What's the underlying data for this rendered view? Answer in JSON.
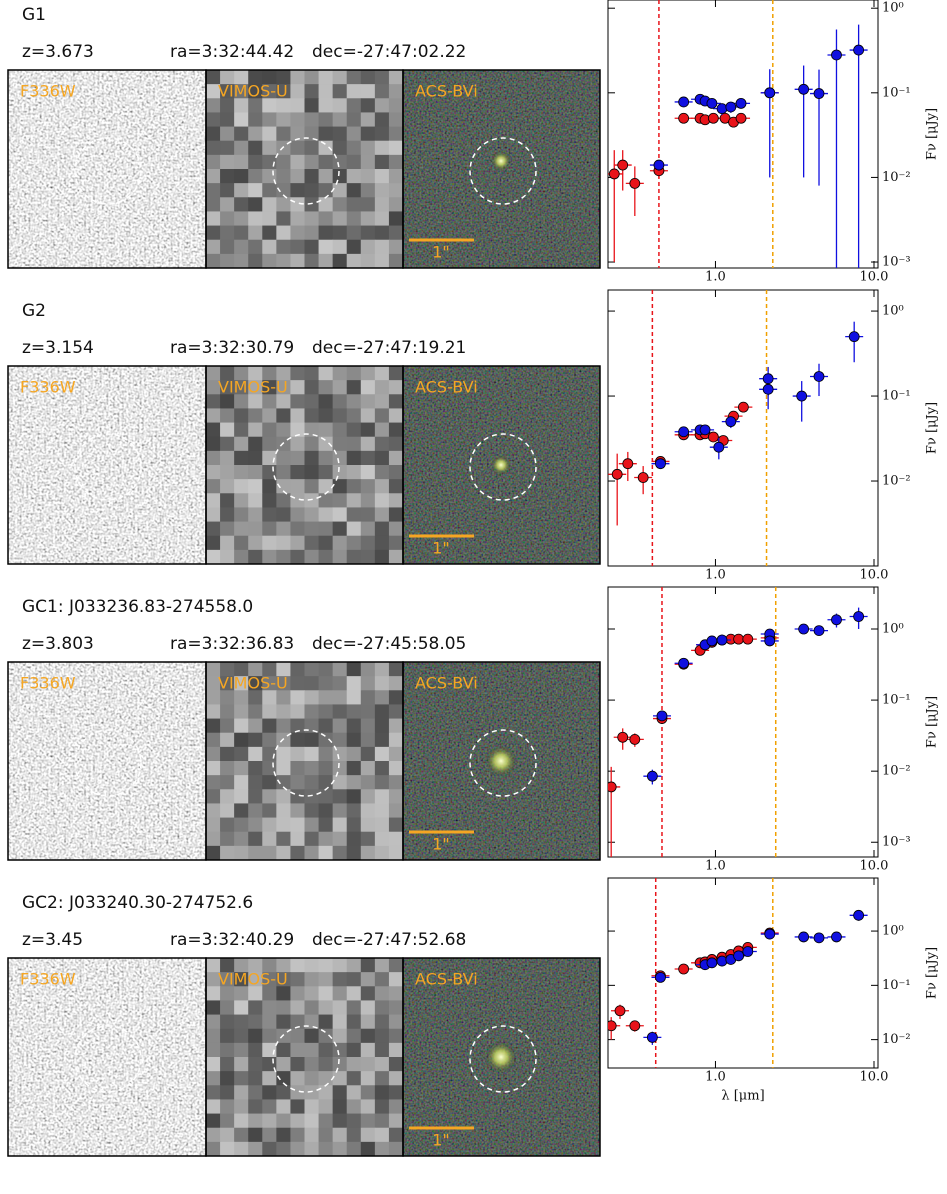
{
  "chart_data": [
    {
      "type": "scatter",
      "title": "G1",
      "annotations": [
        "z=3.673",
        "ra=3:32:44.42",
        "dec=-27:47:02.22"
      ],
      "image_labels": [
        "F336W",
        "VIMOS-U",
        "ACS-BVi"
      ],
      "scale_label": "1\"",
      "x_scale": "log",
      "y_scale": "log",
      "xlim": [
        0.21,
        10.6
      ],
      "ylim": [
        0.00085,
        1.25
      ],
      "xticks": [
        {
          "value": 1,
          "label": "1.0"
        },
        {
          "value": 10,
          "label": "10.0"
        }
      ],
      "yticks": [
        {
          "value": 1,
          "label": "10⁰"
        },
        {
          "value": 0.1,
          "label": "10⁻¹"
        },
        {
          "value": 0.01,
          "label": "10⁻²"
        },
        {
          "value": 0.001,
          "label": "10⁻³"
        }
      ],
      "ylabel": "Fν [μJy]",
      "vlines": [
        {
          "x": 0.44,
          "color": "#e8141a"
        },
        {
          "x": 2.3,
          "color": "#f0a000"
        }
      ],
      "series": [
        {
          "name": "red",
          "color": "#e8141a",
          "x": [
            0.23,
            0.26,
            0.31,
            0.44,
            0.63,
            0.8,
            0.86,
            0.97,
            1.15,
            1.3,
            1.45,
            2.2
          ],
          "values": [
            0.011,
            0.014,
            0.0085,
            0.012,
            0.05,
            0.05,
            0.048,
            0.05,
            0.05,
            0.045,
            0.05,
            0.1
          ],
          "errors": [
            0.01,
            0.007,
            0.005,
            0.002,
            0.003,
            0.003,
            0.003,
            0.003,
            0.003,
            0.003,
            0.003,
            0.01
          ]
        },
        {
          "name": "blue",
          "color": "#1010e0",
          "x": [
            0.44,
            0.63,
            0.8,
            0.86,
            0.95,
            1.1,
            1.25,
            1.45,
            2.2,
            3.6,
            4.5,
            5.8,
            8.0
          ],
          "values": [
            0.014,
            0.078,
            0.084,
            0.08,
            0.075,
            0.065,
            0.068,
            0.075,
            0.1,
            0.11,
            0.098,
            0.28,
            0.32
          ],
          "errors": [
            0.002,
            0.01,
            0.01,
            0.01,
            0.01,
            0.01,
            0.01,
            0.01,
            0.09,
            0.1,
            0.09,
            0.28,
            0.32
          ]
        }
      ]
    },
    {
      "type": "scatter",
      "title": "G2",
      "annotations": [
        "z=3.154",
        "ra=3:32:30.79",
        "dec=-27:47:19.21"
      ],
      "image_labels": [
        "F336W",
        "VIMOS-U",
        "ACS-BVi"
      ],
      "scale_label": "1\"",
      "x_scale": "log",
      "y_scale": "log",
      "xlim": [
        0.21,
        10.6
      ],
      "ylim": [
        0.001,
        1.77
      ],
      "xticks": [
        {
          "value": 1,
          "label": "1.0"
        },
        {
          "value": 10,
          "label": "10.0"
        }
      ],
      "yticks": [
        {
          "value": 1,
          "label": "10⁰"
        },
        {
          "value": 0.1,
          "label": "10⁻¹"
        },
        {
          "value": 0.01,
          "label": "10⁻²"
        }
      ],
      "ylabel": "Fν [μJy]",
      "vlines": [
        {
          "x": 0.4,
          "color": "#e8141a"
        },
        {
          "x": 2.1,
          "color": "#f0a000"
        }
      ],
      "series": [
        {
          "name": "red",
          "color": "#e8141a",
          "x": [
            0.24,
            0.28,
            0.35,
            0.45,
            0.63,
            0.8,
            0.86,
            0.97,
            1.12,
            1.3,
            1.5
          ],
          "values": [
            0.012,
            0.016,
            0.011,
            0.017,
            0.035,
            0.035,
            0.036,
            0.033,
            0.03,
            0.058,
            0.074
          ],
          "errors": [
            0.009,
            0.006,
            0.004,
            0.002,
            0.003,
            0.003,
            0.003,
            0.003,
            0.003,
            0.005,
            0.006
          ]
        },
        {
          "name": "blue",
          "color": "#1010e0",
          "x": [
            0.45,
            0.63,
            0.8,
            0.86,
            1.05,
            1.25,
            2.15,
            2.15,
            3.5,
            4.5,
            7.5
          ],
          "values": [
            0.016,
            0.038,
            0.04,
            0.04,
            0.025,
            0.05,
            0.16,
            0.12,
            0.1,
            0.17,
            0.5
          ],
          "errors": [
            0.002,
            0.004,
            0.004,
            0.004,
            0.007,
            0.008,
            0.06,
            0.05,
            0.05,
            0.07,
            0.25
          ]
        }
      ]
    },
    {
      "type": "scatter",
      "title": "GC1:  J033236.83-274558.0",
      "annotations": [
        "z=3.803",
        "ra=3:32:36.83",
        "dec=-27:45:58.05"
      ],
      "image_labels": [
        "F336W",
        "VIMOS-U",
        "ACS-BVi"
      ],
      "scale_label": "1\"",
      "x_scale": "log",
      "y_scale": "log",
      "xlim": [
        0.21,
        10.6
      ],
      "ylim": [
        0.00062,
        3.9
      ],
      "xticks": [
        {
          "value": 1,
          "label": "1.0"
        },
        {
          "value": 10,
          "label": "10.0"
        }
      ],
      "yticks": [
        {
          "value": 1,
          "label": "10⁰"
        },
        {
          "value": 0.1,
          "label": "10⁻¹"
        },
        {
          "value": 0.01,
          "label": "10⁻²"
        },
        {
          "value": 0.001,
          "label": "10⁻³"
        }
      ],
      "ylabel": "Fν [μJy]",
      "vlines": [
        {
          "x": 0.46,
          "color": "#e8141a"
        },
        {
          "x": 2.4,
          "color": "#f0a000"
        }
      ],
      "series": [
        {
          "name": "red",
          "color": "#e8141a",
          "x": [
            0.22,
            0.26,
            0.31,
            0.46,
            0.63,
            0.8,
            0.86,
            0.95,
            1.1,
            1.25,
            1.4,
            1.6,
            2.2
          ],
          "values": [
            0.006,
            0.03,
            0.028,
            0.055,
            0.32,
            0.5,
            0.6,
            0.65,
            0.7,
            0.72,
            0.72,
            0.72,
            0.75
          ],
          "errors": [
            0.0055,
            0.01,
            0.006,
            0.008,
            0.03,
            0.04,
            0.04,
            0.04,
            0.04,
            0.04,
            0.04,
            0.04,
            0.05
          ]
        },
        {
          "name": "blue",
          "color": "#1010e0",
          "x": [
            0.4,
            0.46,
            0.63,
            0.86,
            0.95,
            1.1,
            2.2,
            2.2,
            3.6,
            4.5,
            5.8,
            8.0
          ],
          "values": [
            0.0085,
            0.06,
            0.33,
            0.6,
            0.68,
            0.7,
            0.85,
            0.68,
            1.0,
            0.95,
            1.35,
            1.5
          ],
          "errors": [
            0.002,
            0.008,
            0.03,
            0.04,
            0.04,
            0.04,
            0.08,
            0.07,
            0.1,
            0.1,
            0.3,
            0.5
          ]
        }
      ]
    },
    {
      "type": "scatter",
      "title": "GC2:  J033240.30-274752.6",
      "annotations": [
        "z=3.45",
        "ra=3:32:40.29",
        "dec=-27:47:52.68"
      ],
      "image_labels": [
        "F336W",
        "VIMOS-U",
        "ACS-BVi"
      ],
      "scale_label": "1\"",
      "x_scale": "log",
      "y_scale": "log",
      "xlim": [
        0.21,
        10.6
      ],
      "ylim": [
        0.003,
        9.5
      ],
      "xticks": [
        {
          "value": 1,
          "label": "1.0"
        },
        {
          "value": 10,
          "label": "10.0"
        }
      ],
      "yticks": [
        {
          "value": 1,
          "label": "10⁰"
        },
        {
          "value": 0.1,
          "label": "10⁻¹"
        },
        {
          "value": 0.01,
          "label": "10⁻²"
        }
      ],
      "ylabel": "Fν [μJy]",
      "xlabel": "λ [μm]",
      "vlines": [
        {
          "x": 0.42,
          "color": "#e8141a"
        },
        {
          "x": 2.3,
          "color": "#f0a000"
        }
      ],
      "series": [
        {
          "name": "red",
          "color": "#e8141a",
          "x": [
            0.22,
            0.25,
            0.31,
            0.45,
            0.63,
            0.8,
            0.86,
            0.95,
            1.1,
            1.25,
            1.4,
            1.6,
            2.2
          ],
          "values": [
            0.018,
            0.034,
            0.018,
            0.15,
            0.2,
            0.26,
            0.27,
            0.3,
            0.33,
            0.37,
            0.43,
            0.5,
            0.92
          ],
          "errors": [
            0.008,
            0.01,
            0.004,
            0.02,
            0.02,
            0.02,
            0.02,
            0.02,
            0.02,
            0.03,
            0.03,
            0.03,
            0.05
          ]
        },
        {
          "name": "blue",
          "color": "#1010e0",
          "x": [
            0.4,
            0.45,
            0.86,
            0.95,
            1.1,
            1.25,
            1.4,
            1.6,
            2.2,
            3.6,
            4.5,
            5.8,
            8.0
          ],
          "values": [
            0.011,
            0.14,
            0.24,
            0.26,
            0.28,
            0.3,
            0.35,
            0.42,
            0.88,
            0.78,
            0.75,
            0.78,
            1.95
          ],
          "errors": [
            0.003,
            0.015,
            0.02,
            0.02,
            0.02,
            0.02,
            0.03,
            0.03,
            0.06,
            0.08,
            0.08,
            0.1,
            0.4
          ]
        }
      ]
    }
  ]
}
